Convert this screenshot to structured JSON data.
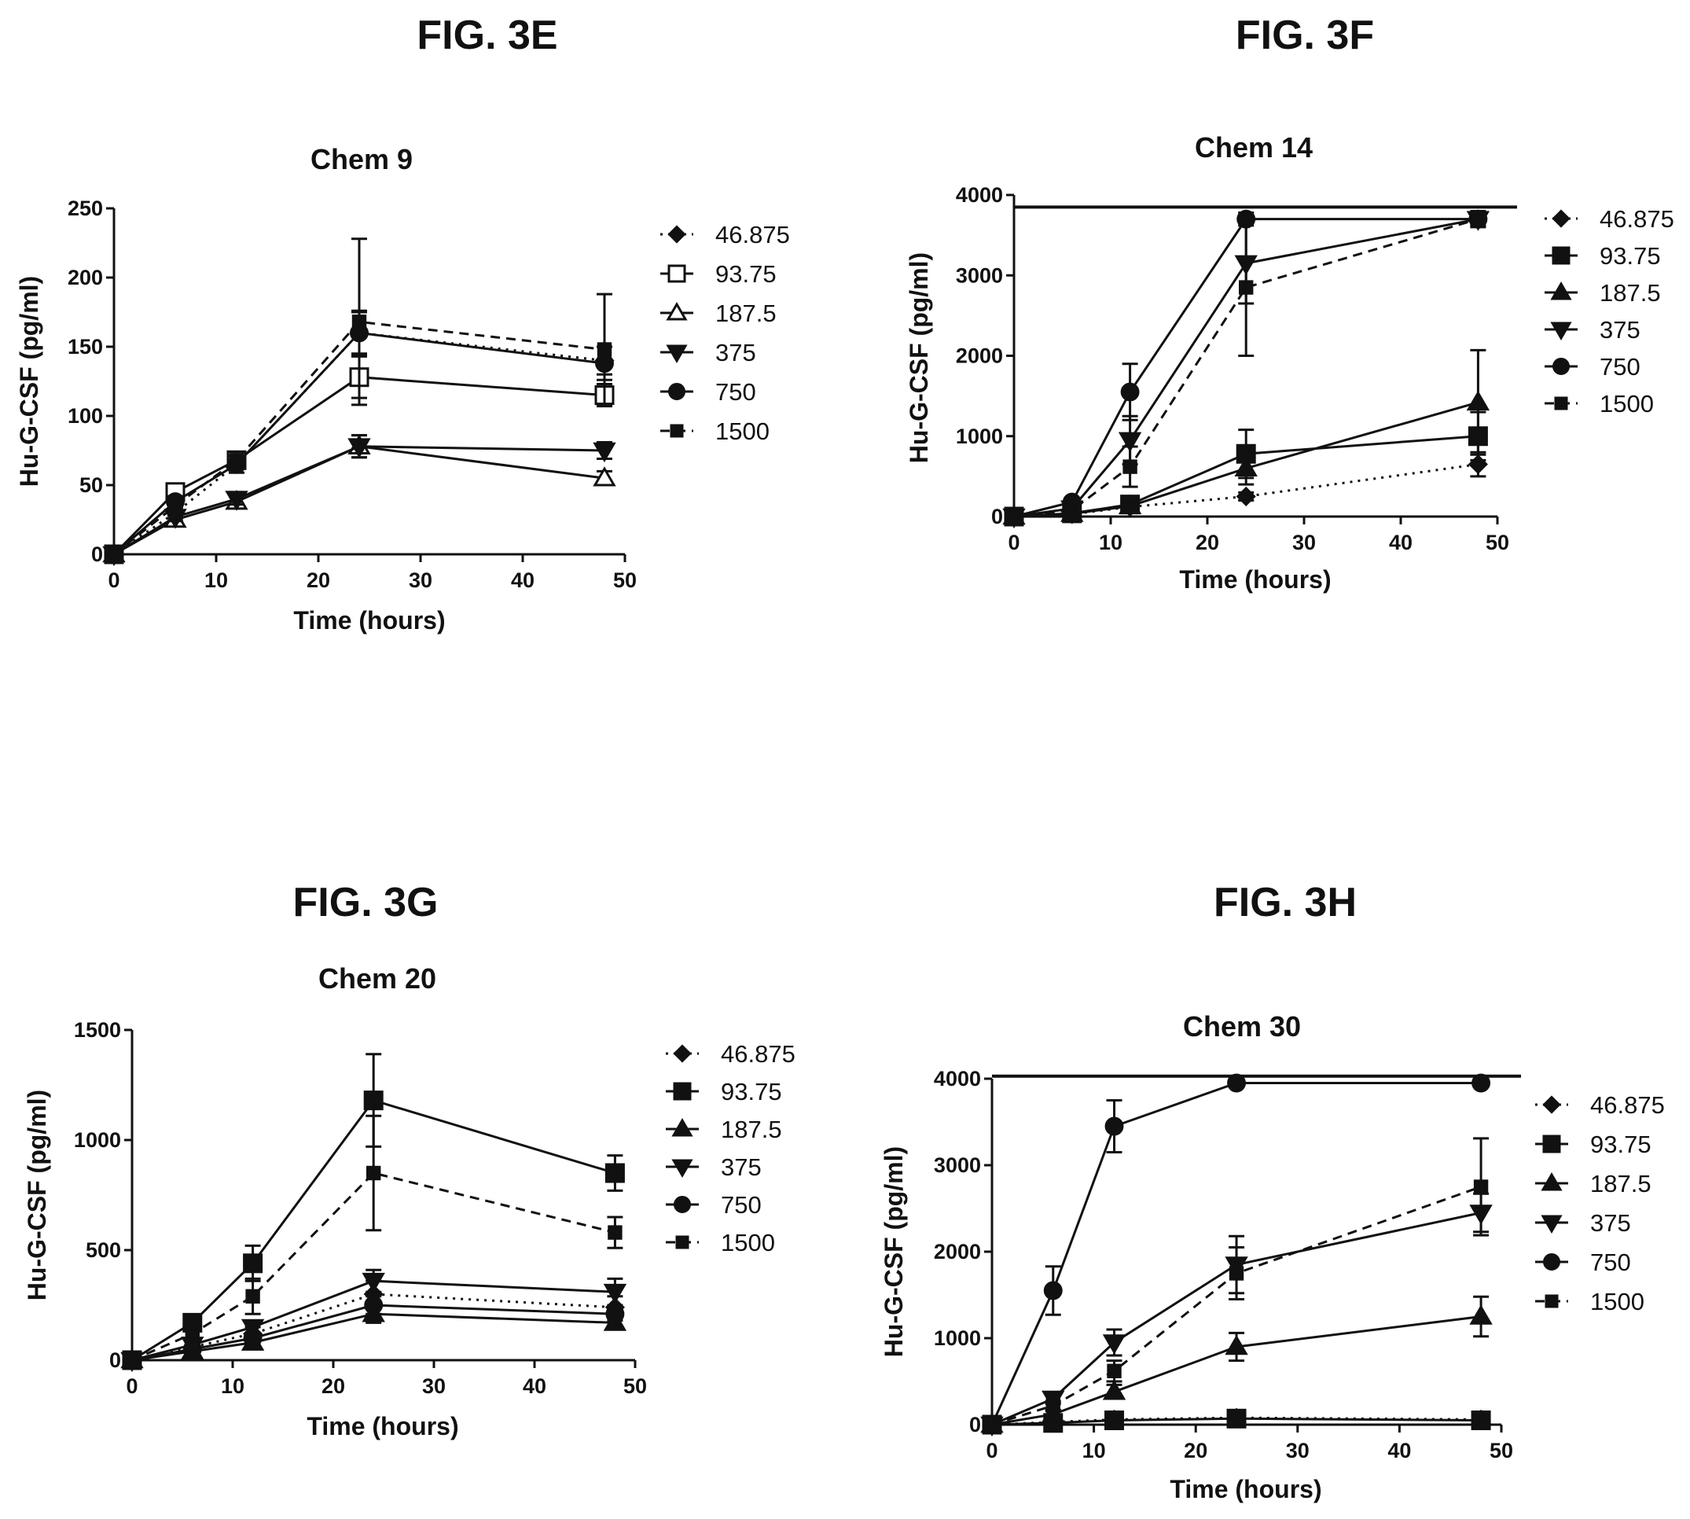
{
  "chart_data": [
    {
      "type": "line",
      "figure_label": "FIG. 3E",
      "title": "Chem 9",
      "xlabel": "Time (hours)",
      "ylabel": "Hu-G-CSF (pg/ml)",
      "xlim": [
        0,
        50
      ],
      "ylim": [
        0,
        250
      ],
      "xticks": [
        0,
        10,
        20,
        30,
        40,
        50
      ],
      "yticks": [
        0,
        50,
        100,
        150,
        200,
        250
      ],
      "legend_placement": "right",
      "x": [
        0,
        6,
        12,
        24,
        48
      ],
      "series": [
        {
          "name": "46.875",
          "marker": "diamond",
          "fill": "filled",
          "dash": "dot",
          "values": [
            0,
            30,
            65,
            160,
            140
          ],
          "error": [
            0,
            4,
            6,
            15,
            10
          ]
        },
        {
          "name": "93.75",
          "marker": "square",
          "fill": "open",
          "dash": "solid",
          "values": [
            0,
            45,
            68,
            128,
            115
          ],
          "error": [
            0,
            4,
            5,
            15,
            8
          ]
        },
        {
          "name": "187.5",
          "marker": "triangle-up",
          "fill": "open",
          "dash": "solid",
          "values": [
            0,
            25,
            38,
            78,
            55
          ],
          "error": [
            0,
            3,
            4,
            8,
            5
          ]
        },
        {
          "name": "375",
          "marker": "triangle-down",
          "fill": "filled",
          "dash": "solid",
          "values": [
            0,
            27,
            40,
            78,
            75
          ],
          "error": [
            0,
            3,
            4,
            8,
            6
          ]
        },
        {
          "name": "750",
          "marker": "circle",
          "fill": "filled",
          "dash": "solid",
          "values": [
            0,
            38,
            65,
            160,
            138
          ],
          "error": [
            0,
            4,
            6,
            16,
            12
          ]
        },
        {
          "name": "1500",
          "marker": "square-small",
          "fill": "filled",
          "dash": "dash",
          "values": [
            0,
            35,
            68,
            168,
            148
          ],
          "error": [
            0,
            4,
            6,
            60,
            40
          ]
        }
      ]
    },
    {
      "type": "line",
      "figure_label": "FIG. 3F",
      "title": "Chem 14",
      "xlabel": "Time (hours)",
      "ylabel": "Hu-G-CSF (pg/ml)",
      "xlim": [
        0,
        50
      ],
      "ylim": [
        0,
        4000
      ],
      "xticks": [
        0,
        10,
        20,
        30,
        40,
        50
      ],
      "yticks": [
        0,
        1000,
        2000,
        3000,
        4000
      ],
      "ceiling": 3850,
      "legend_placement": "right",
      "x": [
        0,
        6,
        12,
        24,
        48
      ],
      "series": [
        {
          "name": "46.875",
          "marker": "diamond",
          "fill": "filled",
          "dash": "dot",
          "values": [
            0,
            30,
            120,
            250,
            650
          ],
          "error": [
            0,
            10,
            30,
            50,
            150
          ]
        },
        {
          "name": "93.75",
          "marker": "square",
          "fill": "filled",
          "dash": "solid",
          "values": [
            0,
            40,
            150,
            780,
            1000
          ],
          "error": [
            0,
            10,
            30,
            300,
            300
          ]
        },
        {
          "name": "187.5",
          "marker": "triangle-up",
          "fill": "filled",
          "dash": "solid",
          "values": [
            0,
            35,
            130,
            600,
            1420
          ],
          "error": [
            0,
            10,
            30,
            200,
            650
          ]
        },
        {
          "name": "375",
          "marker": "triangle-down",
          "fill": "filled",
          "dash": "solid",
          "values": [
            0,
            100,
            950,
            3150,
            3700
          ],
          "error": [
            0,
            30,
            300,
            500,
            100
          ]
        },
        {
          "name": "750",
          "marker": "circle",
          "fill": "filled",
          "dash": "solid",
          "values": [
            0,
            180,
            1550,
            3700,
            3700
          ],
          "error": [
            0,
            40,
            350,
            80,
            80
          ]
        },
        {
          "name": "1500",
          "marker": "square-small",
          "fill": "filled",
          "dash": "dash",
          "values": [
            0,
            80,
            620,
            2850,
            3700
          ],
          "error": [
            0,
            20,
            250,
            850,
            80
          ]
        }
      ]
    },
    {
      "type": "line",
      "figure_label": "FIG. 3G",
      "title": "Chem 20",
      "xlabel": "Time (hours)",
      "ylabel": "Hu-G-CSF (pg/ml)",
      "xlim": [
        0,
        50
      ],
      "ylim": [
        0,
        1500
      ],
      "xticks": [
        0,
        10,
        20,
        30,
        40,
        50
      ],
      "yticks": [
        0,
        500,
        1000,
        1500
      ],
      "legend_placement": "right",
      "x": [
        0,
        6,
        12,
        24,
        48
      ],
      "series": [
        {
          "name": "46.875",
          "marker": "diamond",
          "fill": "filled",
          "dash": "dot",
          "values": [
            0,
            60,
            120,
            300,
            240
          ],
          "error": [
            0,
            15,
            30,
            60,
            50
          ]
        },
        {
          "name": "93.75",
          "marker": "square",
          "fill": "filled",
          "dash": "solid",
          "values": [
            0,
            170,
            440,
            1180,
            850
          ],
          "error": [
            0,
            20,
            80,
            210,
            80
          ]
        },
        {
          "name": "187.5",
          "marker": "triangle-up",
          "fill": "filled",
          "dash": "solid",
          "values": [
            0,
            40,
            80,
            210,
            170
          ],
          "error": [
            0,
            10,
            20,
            40,
            30
          ]
        },
        {
          "name": "375",
          "marker": "triangle-down",
          "fill": "filled",
          "dash": "solid",
          "values": [
            0,
            70,
            150,
            360,
            310
          ],
          "error": [
            0,
            15,
            30,
            50,
            60
          ]
        },
        {
          "name": "750",
          "marker": "circle",
          "fill": "filled",
          "dash": "solid",
          "values": [
            0,
            50,
            100,
            250,
            210
          ],
          "error": [
            0,
            10,
            25,
            40,
            30
          ]
        },
        {
          "name": "1500",
          "marker": "square-small",
          "fill": "filled",
          "dash": "dash",
          "values": [
            0,
            120,
            290,
            850,
            580
          ],
          "error": [
            0,
            25,
            80,
            260,
            70
          ]
        }
      ]
    },
    {
      "type": "line",
      "figure_label": "FIG. 3H",
      "title": "Chem 30",
      "xlabel": "Time (hours)",
      "ylabel": "Hu-G-CSF (pg/ml)",
      "xlim": [
        0,
        50
      ],
      "ylim": [
        0,
        4000
      ],
      "xticks": [
        0,
        10,
        20,
        30,
        40,
        50
      ],
      "yticks": [
        0,
        1000,
        2000,
        3000,
        4000
      ],
      "ceiling": 4030,
      "legend_placement": "right",
      "x": [
        0,
        6,
        12,
        24,
        48
      ],
      "series": [
        {
          "name": "46.875",
          "marker": "diamond",
          "fill": "filled",
          "dash": "dot",
          "values": [
            0,
            30,
            60,
            80,
            60
          ],
          "error": [
            0,
            10,
            10,
            20,
            20
          ]
        },
        {
          "name": "93.75",
          "marker": "square",
          "fill": "filled",
          "dash": "solid",
          "values": [
            0,
            20,
            50,
            70,
            50
          ],
          "error": [
            0,
            10,
            10,
            20,
            20
          ]
        },
        {
          "name": "187.5",
          "marker": "triangle-up",
          "fill": "filled",
          "dash": "solid",
          "values": [
            0,
            120,
            380,
            900,
            1250
          ],
          "error": [
            0,
            40,
            80,
            160,
            230
          ]
        },
        {
          "name": "375",
          "marker": "triangle-down",
          "fill": "filled",
          "dash": "solid",
          "values": [
            0,
            300,
            950,
            1850,
            2450
          ],
          "error": [
            0,
            60,
            150,
            330,
            220
          ]
        },
        {
          "name": "750",
          "marker": "circle",
          "fill": "filled",
          "dash": "solid",
          "values": [
            0,
            1550,
            3450,
            3950,
            3950
          ],
          "error": [
            0,
            280,
            300,
            40,
            40
          ]
        },
        {
          "name": "1500",
          "marker": "square-small",
          "fill": "filled",
          "dash": "dash",
          "values": [
            0,
            220,
            620,
            1750,
            2750
          ],
          "error": [
            0,
            50,
            120,
            300,
            560
          ]
        }
      ]
    }
  ]
}
